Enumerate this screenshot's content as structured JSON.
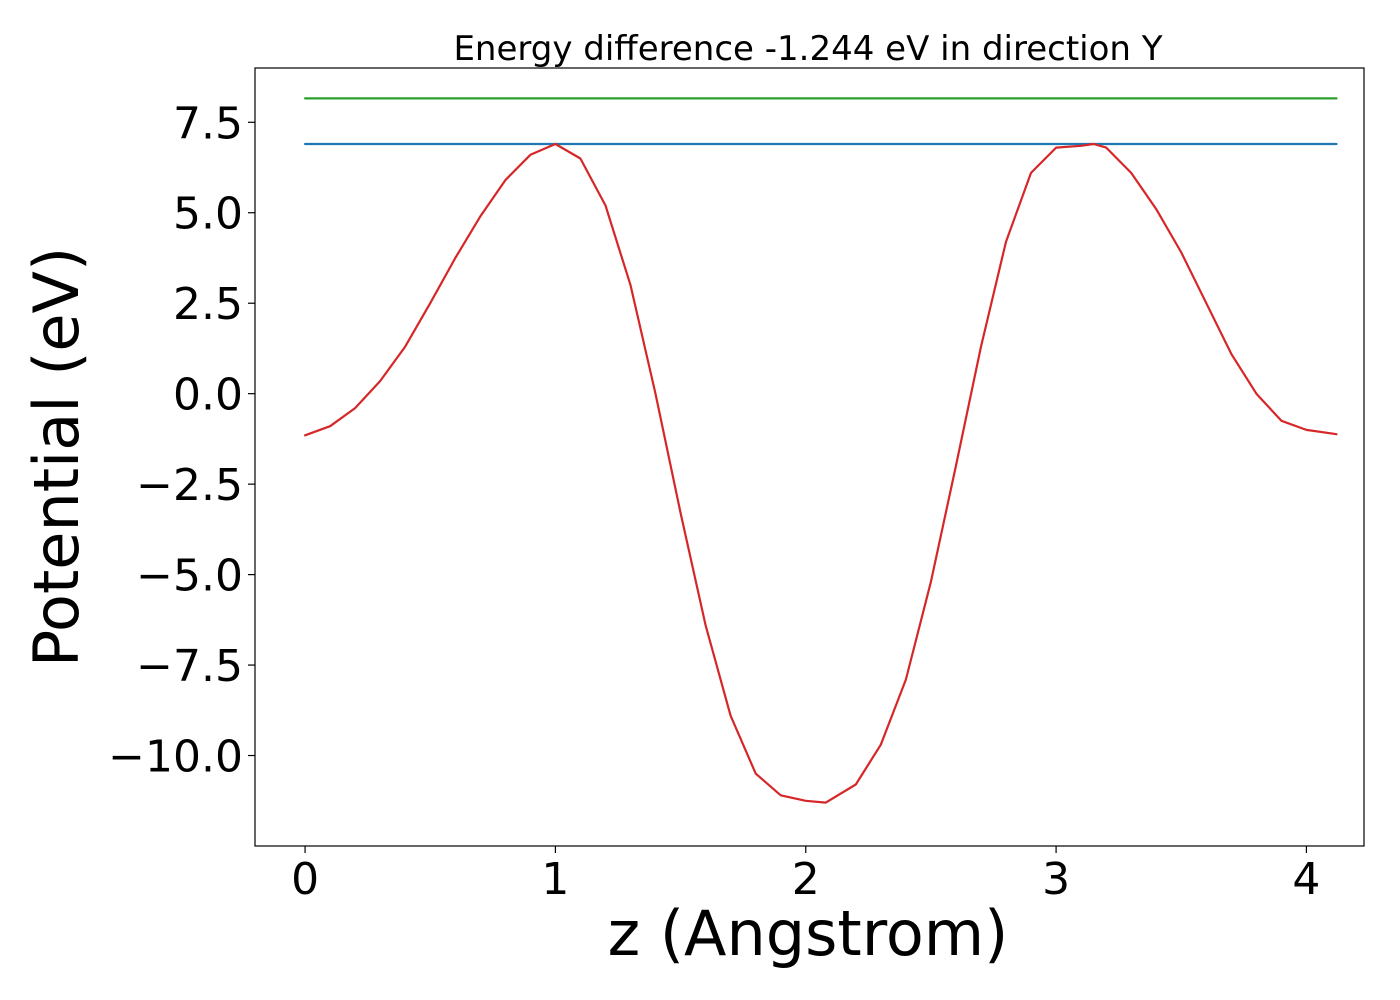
{
  "chart_data": {
    "type": "line",
    "title": "Energy difference -1.244 eV in direction Y",
    "xlabel": "z (Angstrom)",
    "ylabel": "Potential (eV)",
    "xlim": [
      -0.2,
      4.23
    ],
    "ylim": [
      -12.5,
      9.0
    ],
    "grid": false,
    "legend": "none",
    "x_ticks": [
      {
        "value": 0,
        "label": "0"
      },
      {
        "value": 1,
        "label": "1"
      },
      {
        "value": 2,
        "label": "2"
      },
      {
        "value": 3,
        "label": "3"
      },
      {
        "value": 4,
        "label": "4"
      }
    ],
    "y_ticks": [
      {
        "value": -10.0,
        "label": "−10.0"
      },
      {
        "value": -7.5,
        "label": "−7.5"
      },
      {
        "value": -5.0,
        "label": "−5.0"
      },
      {
        "value": -2.5,
        "label": "−2.5"
      },
      {
        "value": 0.0,
        "label": "0.0"
      },
      {
        "value": 2.5,
        "label": "2.5"
      },
      {
        "value": 5.0,
        "label": "5.0"
      },
      {
        "value": 7.5,
        "label": "7.5"
      }
    ],
    "series": [
      {
        "color": "#2ca02c",
        "x": [
          0.0,
          4.12
        ],
        "y": [
          8.16,
          8.16
        ]
      },
      {
        "color": "#1f77b4",
        "x": [
          0.0,
          4.12
        ],
        "y": [
          6.9,
          6.9
        ]
      },
      {
        "color": "#d62728",
        "x": [
          0.0,
          0.1,
          0.2,
          0.3,
          0.4,
          0.5,
          0.6,
          0.7,
          0.8,
          0.9,
          1.0,
          1.1,
          1.2,
          1.3,
          1.4,
          1.5,
          1.6,
          1.7,
          1.8,
          1.9,
          2.0,
          2.08,
          2.2,
          2.3,
          2.4,
          2.5,
          2.6,
          2.7,
          2.8,
          2.9,
          3.0,
          3.1,
          3.15,
          3.2,
          3.3,
          3.4,
          3.5,
          3.6,
          3.7,
          3.8,
          3.9,
          4.0,
          4.12
        ],
        "y": [
          -1.15,
          -0.9,
          -0.4,
          0.35,
          1.3,
          2.5,
          3.75,
          4.9,
          5.9,
          6.6,
          6.9,
          6.5,
          5.2,
          3.0,
          0.0,
          -3.3,
          -6.4,
          -8.9,
          -10.5,
          -11.1,
          -11.25,
          -11.3,
          -10.8,
          -9.7,
          -7.9,
          -5.2,
          -2.0,
          1.3,
          4.2,
          6.1,
          6.8,
          6.85,
          6.9,
          6.8,
          6.1,
          5.1,
          3.9,
          2.5,
          1.1,
          0.0,
          -0.75,
          -1.0,
          -1.12
        ]
      }
    ]
  }
}
